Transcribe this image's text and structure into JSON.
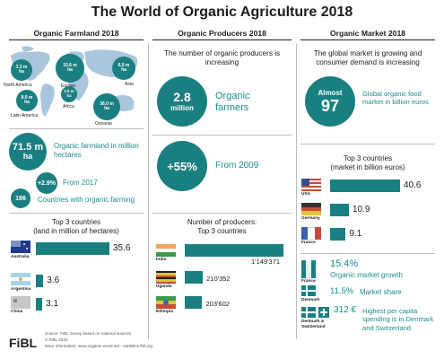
{
  "title": "The World of Organic Agriculture 2018",
  "columns": {
    "farmland": "Organic Farmland 2018",
    "producers": "Organic Producers 2018",
    "market": "Organic Market 2018"
  },
  "map": {
    "bubbles": [
      {
        "value": "3.3 m",
        "unit": "ha",
        "region": "North America"
      },
      {
        "value": "15.6 m",
        "unit": "ha",
        "region": "Europe"
      },
      {
        "value": "6.5 m",
        "unit": "ha",
        "region": "Asia"
      },
      {
        "value": "8.0 m",
        "unit": "ha",
        "region": "Latin America"
      },
      {
        "value": "2.0 m",
        "unit": "ha",
        "region": "Africa"
      },
      {
        "value": "36.0 m",
        "unit": "ha",
        "region": "Oceania"
      }
    ]
  },
  "farmland": {
    "total_value": "71.5 m",
    "total_unit": "ha",
    "total_label": "Organic farmland in million hectares",
    "growth_value": "+2.9%",
    "growth_label": "From 2017",
    "countries_value": "186",
    "countries_label": "Countries with organic farming",
    "top_title_line1": "Top 3 countries",
    "top_title_line2": "(land in million of hectares)",
    "top": [
      {
        "country": "Australia",
        "value": 35.6,
        "label": "35.6"
      },
      {
        "country": "Argentina",
        "value": 3.6,
        "label": "3.6"
      },
      {
        "country": "China",
        "value": 3.1,
        "label": "3.1"
      }
    ]
  },
  "producers": {
    "subtitle": "The number of organic producers is increasing",
    "total_value": "2.8",
    "total_unit": "million",
    "total_label": "Organic farmers",
    "growth_value": "+55%",
    "growth_label": "From 2009",
    "top_title_line1": "Number of producers:",
    "top_title_line2": "Top 3 countries",
    "top": [
      {
        "country": "India",
        "value": 1149371,
        "label": "1'149'371"
      },
      {
        "country": "Uganda",
        "value": 210352,
        "label": "210'352"
      },
      {
        "country": "Ethiopia",
        "value": 203602,
        "label": "203'602"
      }
    ]
  },
  "market": {
    "subtitle": "The global market is growing and consumer demand is increasing",
    "total_prefix": "Almost",
    "total_value": "97",
    "total_label": "Global organic food market in billion euros",
    "top_title_line1": "Top 3 countries",
    "top_title_line2": "(market in billion euros)",
    "top": [
      {
        "country": "USA",
        "value": 40.6,
        "label": "40.6"
      },
      {
        "country": "Germany",
        "value": 10.9,
        "label": "10.9"
      },
      {
        "country": "France",
        "value": 9.1,
        "label": "9.1"
      }
    ],
    "stats": [
      {
        "country": "France",
        "value": "15.4%",
        "label": "Organic market growth"
      },
      {
        "country": "Denmark",
        "value": "11.5%",
        "label": "Market share"
      },
      {
        "country": "Denmark & Switzerland",
        "value": "312 €",
        "label": "Highest per capita spending is in Denmark and Switzerland"
      }
    ]
  },
  "footer": {
    "logo": "FiBL",
    "source": "Source: FiBL survey based on national sources",
    "copyright": "© FiBL 2020",
    "more": "More information: www.organic-world.net - statistics.fibl.org"
  }
}
